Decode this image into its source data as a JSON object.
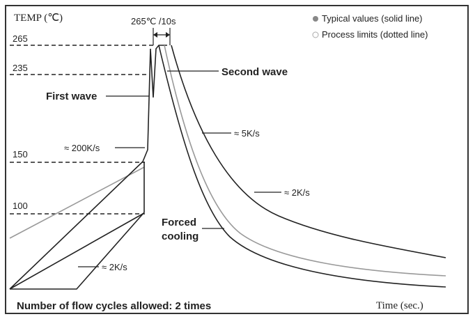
{
  "header": {
    "axis_label": "TEMP (℃)",
    "peak_label": "265℃ /10s"
  },
  "legend": [
    "Typical values (solid line)",
    "Process limits (dotted line)"
  ],
  "levels": [
    "265",
    "235",
    "150",
    "100"
  ],
  "annotations": {
    "first_wave": "First wave",
    "second_wave": "Second wave",
    "rate_200": "≈ 200K/s",
    "rate_5": "≈ 5K/s",
    "rate_2_cool": "≈ 2K/s",
    "forced_1": "Forced",
    "forced_2": "cooling",
    "rate_2_heat": "≈ 2K/s"
  },
  "footer": {
    "cycles": "Number of flow cycles allowed: 2 times",
    "x_axis_label": "Time (sec.)"
  }
}
